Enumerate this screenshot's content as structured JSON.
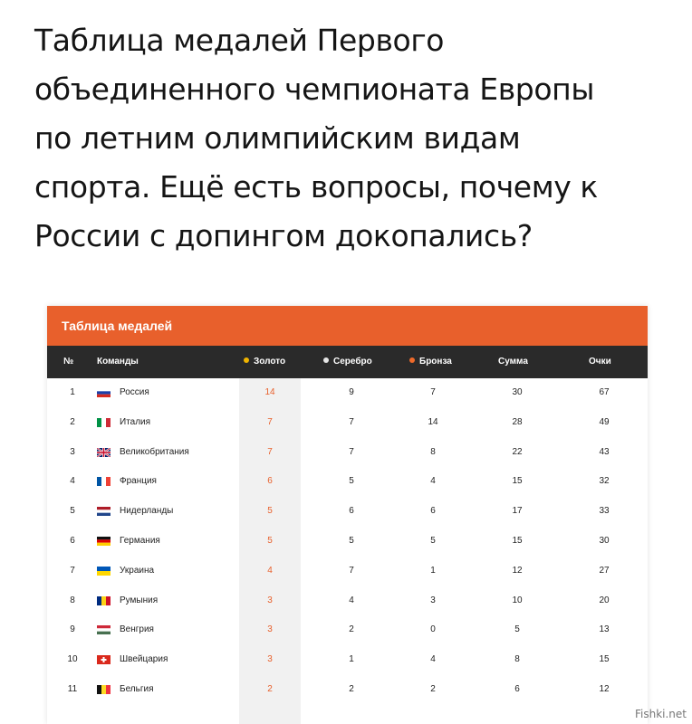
{
  "post": {
    "lines": [
      "Таблица медалей Первого",
      "объединенного чемпионата Европы",
      "по летним олимпийским видам",
      "спорта. Ещё есть вопросы, почему к",
      "России с допингом докопались?"
    ]
  },
  "table": {
    "title": "Таблица медалей",
    "headers": {
      "num": "№",
      "teams": "Команды",
      "gold": "Золото",
      "silver": "Серебро",
      "bronze": "Бронза",
      "sum": "Сумма",
      "points": "Очки"
    },
    "dot_colors": {
      "gold": "#f0b400",
      "silver": "#e6e6e6",
      "bronze": "#ef6a2a"
    },
    "rows": [
      {
        "num": "1",
        "team": "Россия",
        "flag": "russia",
        "gold": "14",
        "silver": "9",
        "bronze": "7",
        "sum": "30",
        "points": "67"
      },
      {
        "num": "2",
        "team": "Италия",
        "flag": "italy",
        "gold": "7",
        "silver": "7",
        "bronze": "14",
        "sum": "28",
        "points": "49"
      },
      {
        "num": "3",
        "team": "Великобритания",
        "flag": "uk",
        "gold": "7",
        "silver": "7",
        "bronze": "8",
        "sum": "22",
        "points": "43"
      },
      {
        "num": "4",
        "team": "Франция",
        "flag": "france",
        "gold": "6",
        "silver": "5",
        "bronze": "4",
        "sum": "15",
        "points": "32"
      },
      {
        "num": "5",
        "team": "Нидерланды",
        "flag": "netherlands",
        "gold": "5",
        "silver": "6",
        "bronze": "6",
        "sum": "17",
        "points": "33"
      },
      {
        "num": "6",
        "team": "Германия",
        "flag": "germany",
        "gold": "5",
        "silver": "5",
        "bronze": "5",
        "sum": "15",
        "points": "30"
      },
      {
        "num": "7",
        "team": "Украина",
        "flag": "ukraine",
        "gold": "4",
        "silver": "7",
        "bronze": "1",
        "sum": "12",
        "points": "27"
      },
      {
        "num": "8",
        "team": "Румыния",
        "flag": "romania",
        "gold": "3",
        "silver": "4",
        "bronze": "3",
        "sum": "10",
        "points": "20"
      },
      {
        "num": "9",
        "team": "Венгрия",
        "flag": "hungary",
        "gold": "3",
        "silver": "2",
        "bronze": "0",
        "sum": "5",
        "points": "13"
      },
      {
        "num": "10",
        "team": "Швейцария",
        "flag": "switzerland",
        "gold": "3",
        "silver": "1",
        "bronze": "4",
        "sum": "8",
        "points": "15"
      },
      {
        "num": "11",
        "team": "Бельгия",
        "flag": "belgium",
        "gold": "2",
        "silver": "2",
        "bronze": "2",
        "sum": "6",
        "points": "12"
      }
    ]
  },
  "watermark": "Fishki.net"
}
